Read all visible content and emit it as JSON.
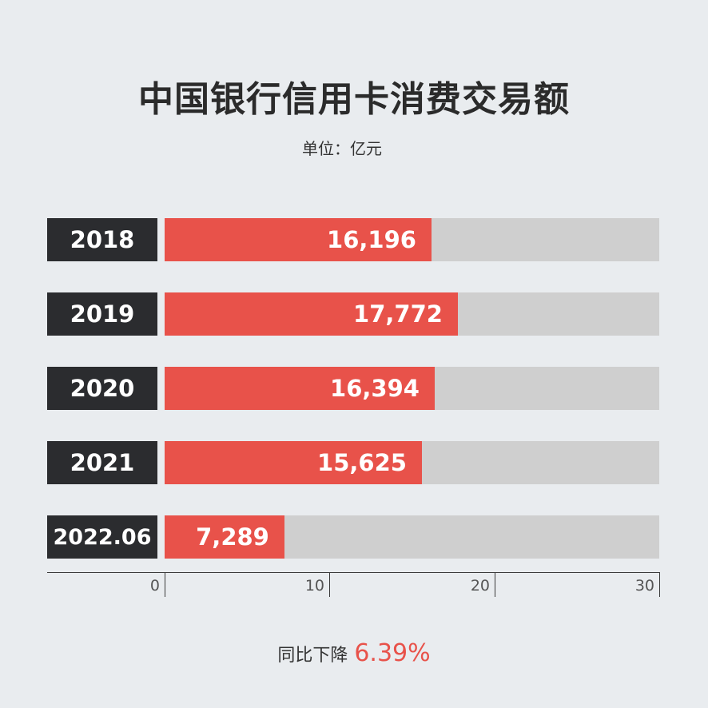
{
  "title": "中国银行信用卡消费交易额",
  "unit": "单位：亿元",
  "footer": {
    "label": "同比下降",
    "value": "6.39%"
  },
  "colors": {
    "bar": "#e8524a",
    "track": "#cfcfcf",
    "label_bg": "#2b2c2f",
    "background": "#e9ecef"
  },
  "chart_data": {
    "type": "bar",
    "orientation": "horizontal",
    "categories": [
      "2018",
      "2019",
      "2020",
      "2021",
      "2022.06"
    ],
    "values": [
      16196,
      17772,
      16394,
      15625,
      7289
    ],
    "value_labels": [
      "16,196",
      "17,772",
      "16,394",
      "15,625",
      "7,289"
    ],
    "xlim": [
      0,
      30000
    ],
    "x_ticks": [
      0,
      10,
      20,
      30
    ],
    "tick_labels": [
      "0",
      "10",
      "20",
      "30"
    ],
    "grid": false,
    "legend": "none"
  }
}
